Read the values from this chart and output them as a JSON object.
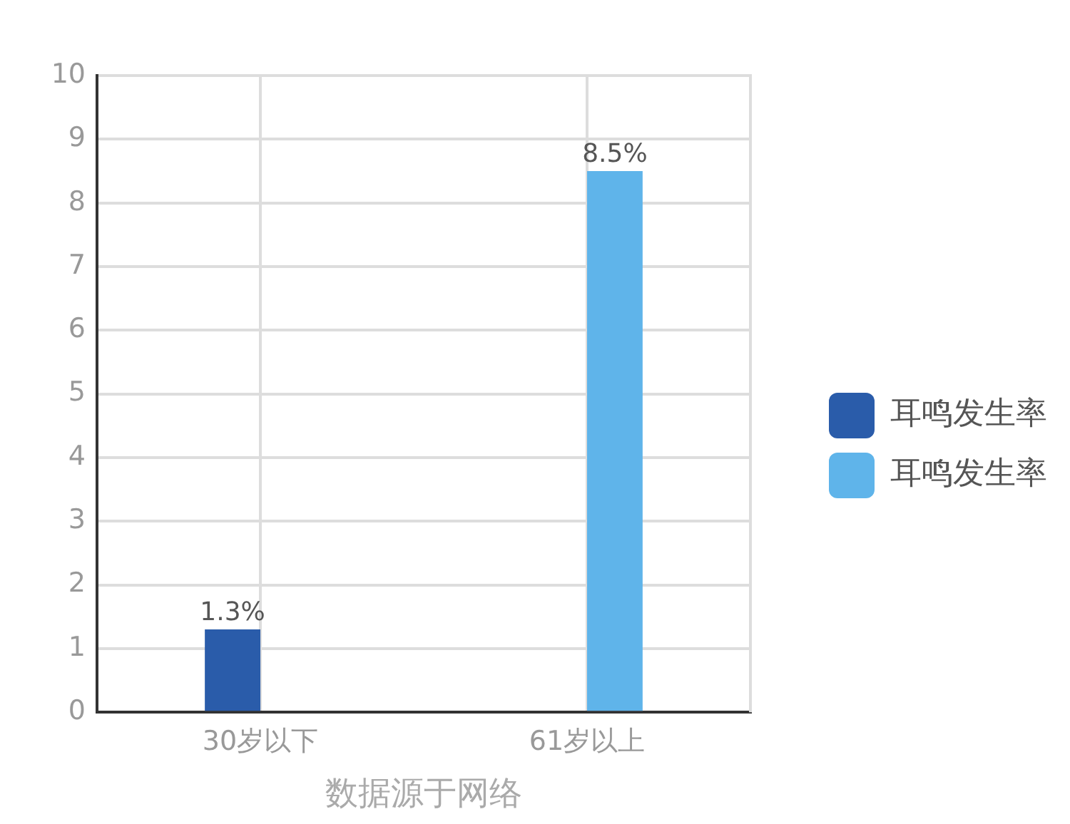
{
  "chart_data": {
    "type": "bar",
    "xlabel": "数据源于网络",
    "categories": [
      "30岁以下",
      "61岁以上"
    ],
    "series": [
      {
        "name": "耳鸣发生率",
        "color": "#2a5caa",
        "values": [
          1.3,
          null
        ],
        "value_labels": [
          "1.3%",
          null
        ]
      },
      {
        "name": "耳鸣发生率",
        "color": "#5fb4ea",
        "values": [
          null,
          8.5
        ],
        "value_labels": [
          null,
          "8.5%"
        ]
      }
    ],
    "ylim": [
      0,
      10
    ],
    "yticks": [
      0,
      1,
      2,
      3,
      4,
      5,
      6,
      7,
      8,
      9,
      10
    ],
    "grid": true,
    "legend": "right"
  }
}
